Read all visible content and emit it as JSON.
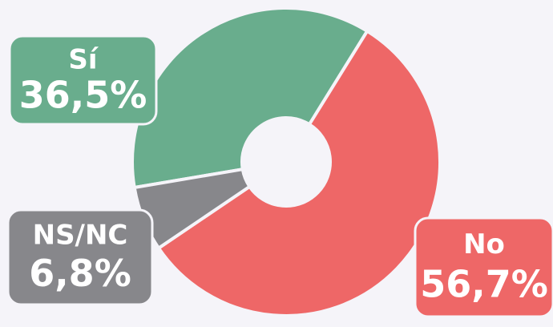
{
  "chart_data": {
    "type": "donut",
    "categories": [
      "Sí",
      "No",
      "NS/NC"
    ],
    "values": [
      36.5,
      56.7,
      6.8
    ],
    "value_labels": [
      "36,5%",
      "56,7%",
      "6,8%"
    ],
    "colors": [
      "#69ad8d",
      "#ee6767",
      "#87878b"
    ]
  }
}
